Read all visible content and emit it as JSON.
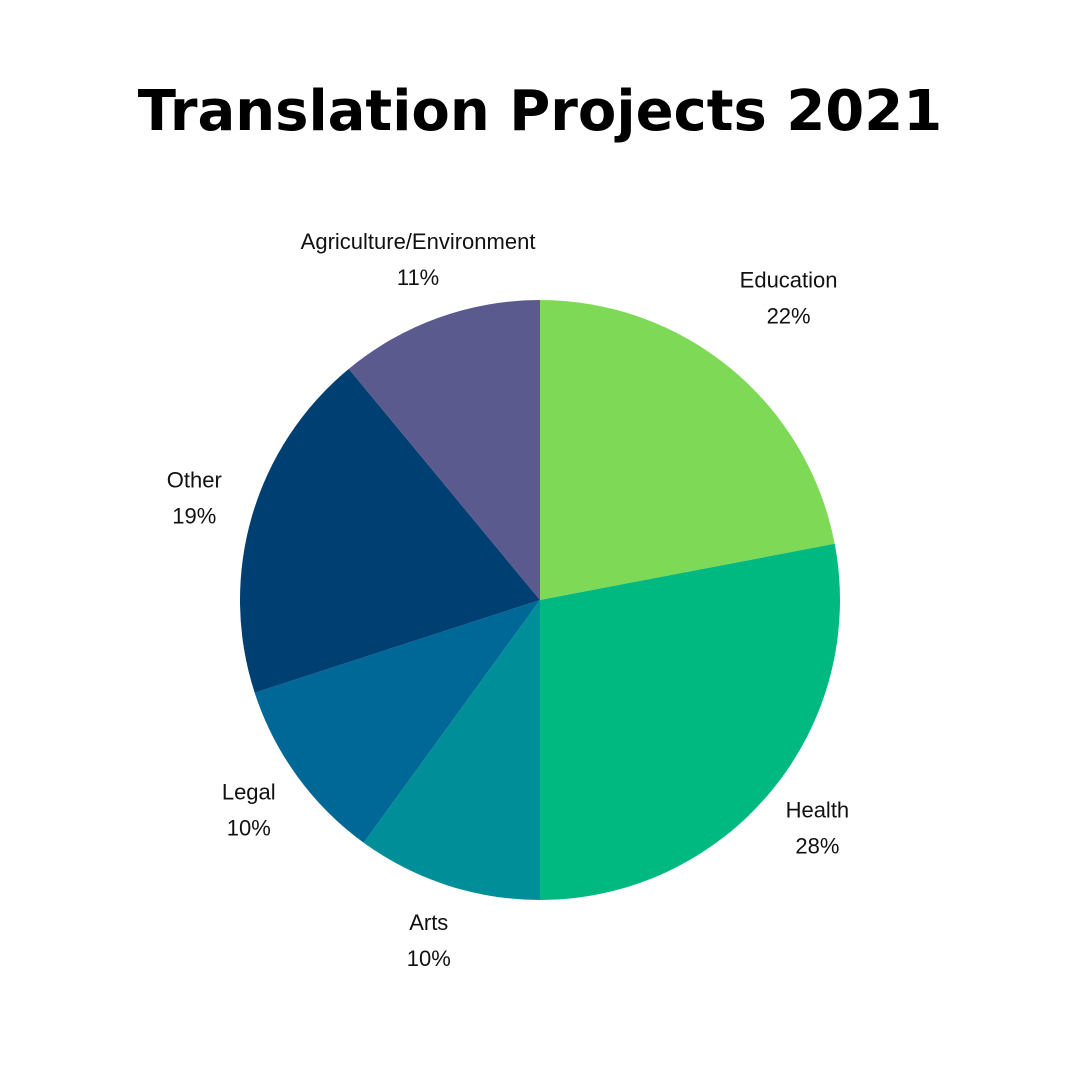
{
  "chart_data": {
    "type": "pie",
    "title": "Translation Projects 2021",
    "categories": [
      "Education",
      "Health",
      "Arts",
      "Legal",
      "Other",
      "Agriculture/Environment"
    ],
    "values": [
      22,
      28,
      10,
      10,
      19,
      11
    ],
    "value_labels": [
      "22%",
      "28%",
      "10%",
      "10%",
      "19%",
      "11%"
    ],
    "colors": [
      "#7ed957",
      "#00b980",
      "#008f99",
      "#006896",
      "#003f72",
      "#5a5a8f"
    ]
  }
}
